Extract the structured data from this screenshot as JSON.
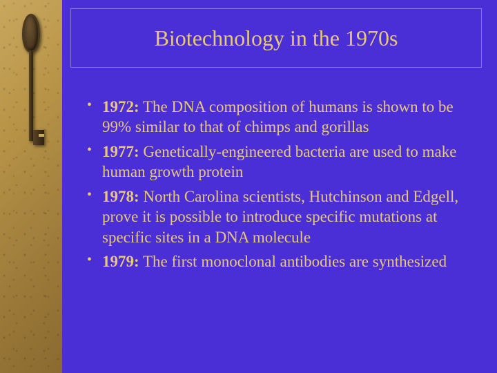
{
  "colors": {
    "slide_bg": "#4a2fd6",
    "title_text": "#e8c878",
    "body_text": "#e8c878",
    "sidebar_base": "#b89548"
  },
  "typography": {
    "title_fontsize": 32,
    "body_fontsize": 23,
    "title_family": "Palatino Linotype",
    "body_family": "Times New Roman"
  },
  "title": "Biotechnology in the 1970s",
  "bullets": [
    {
      "year": "1972:",
      "text": " The DNA composition of humans is shown to be 99% similar to that of chimps and gorillas"
    },
    {
      "year": "1977:",
      "text": " Genetically-engineered bacteria are used to make human growth protein"
    },
    {
      "year": "1978:",
      "text": " North Carolina scientists, Hutchinson and Edgell, prove it is possible to introduce specific mutations at specific sites in a DNA molecule"
    },
    {
      "year": "1979:",
      "text": " The first monoclonal antibodies are synthesized"
    }
  ]
}
